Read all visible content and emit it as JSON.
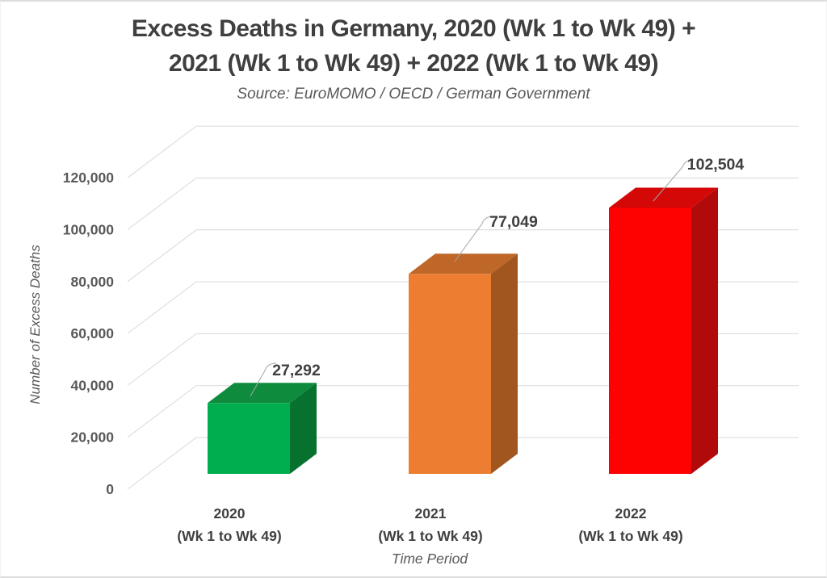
{
  "page": {
    "title_line1": "Excess Deaths in Germany, 2020 (Wk 1 to Wk 49) +",
    "title_line2": "2021 (Wk 1 to Wk 49) + 2022 (Wk 1 to Wk 49)",
    "subtitle": "Source: EuroMOMO / OECD / German Government"
  },
  "chart_data": {
    "type": "bar",
    "style": "3d-column",
    "title": "Excess Deaths in Germany, 2020 (Wk 1 to Wk 49) + 2021 (Wk 1 to Wk 49) + 2022 (Wk 1 to Wk 49)",
    "subtitle": "Source: EuroMOMO / OECD / German Government",
    "xlabel": "Time Period",
    "ylabel": "Number of Excess Deaths",
    "ylim": [
      0,
      120000
    ],
    "ytick_step": 20000,
    "ytick_labels": [
      "0",
      "20,000",
      "40,000",
      "60,000",
      "80,000",
      "100,000",
      "120,000"
    ],
    "grid": true,
    "legend": false,
    "grid_color": "#d9d9d9",
    "leader_color": "#a6a6a6",
    "text_color": "#3f3f3f",
    "axis_text_color": "#595959",
    "categories": [
      {
        "line1": "2020",
        "line2": "(Wk 1 to Wk 49)"
      },
      {
        "line1": "2021",
        "line2": "(Wk 1 to Wk 49)"
      },
      {
        "line1": "2022",
        "line2": "(Wk 1 to Wk 49)"
      }
    ],
    "values": [
      27292,
      77049,
      102504
    ],
    "value_labels": [
      "27,292",
      "77,049",
      "102,504"
    ],
    "series_colors": [
      {
        "name": "green",
        "front": "#00AE50",
        "top": "#0E8B3D",
        "side": "#07722F"
      },
      {
        "name": "orange",
        "front": "#EC7D31",
        "top": "#BF6728",
        "side": "#A2561F"
      },
      {
        "name": "red",
        "front": "#FE0202",
        "top": "#D50808",
        "side": "#B00A0A"
      }
    ]
  }
}
